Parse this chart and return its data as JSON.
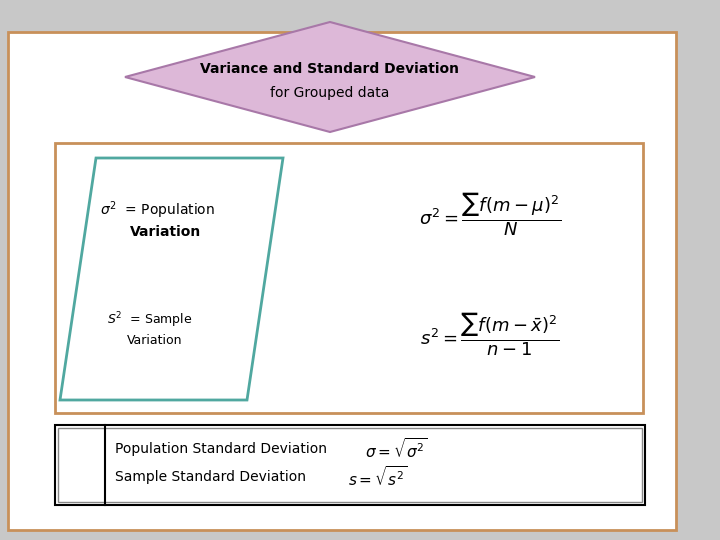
{
  "title_line1": "Variance and Standard Deviation",
  "title_line2": "for Grouped data",
  "page_bg": "#c8c8c8",
  "outer_rect_color": "#c8905a",
  "inner_rect_color": "#c8905a",
  "diamond_fill": "#ddb8d8",
  "diamond_edge": "#a878a8",
  "parallelogram_edge": "#50a8a0",
  "parallelogram_fill": "#ffffff",
  "bottom_box_edge": "#000000",
  "bottom_box_fill": "#ffffff",
  "pop_label_main": "$\\sigma^2$  = Population",
  "pop_label_sub": "Variation",
  "sample_label_main": "$S^2$  = Sample",
  "sample_label_sub": "Variation",
  "pop_formula": "$\\sigma^2 = \\dfrac{\\sum f(m-\\mu)^2}{N}$",
  "sample_formula": "$s^2 = \\dfrac{\\sum f(m-\\bar{x})^2}{n-1}$",
  "pop_std_text": "Population Standard Deviation",
  "pop_std_formula": "$\\sigma = \\sqrt{\\sigma^2}$",
  "sample_std_text": "Sample Standard Deviation",
  "sample_std_formula": "$s = \\sqrt{s^2}$"
}
